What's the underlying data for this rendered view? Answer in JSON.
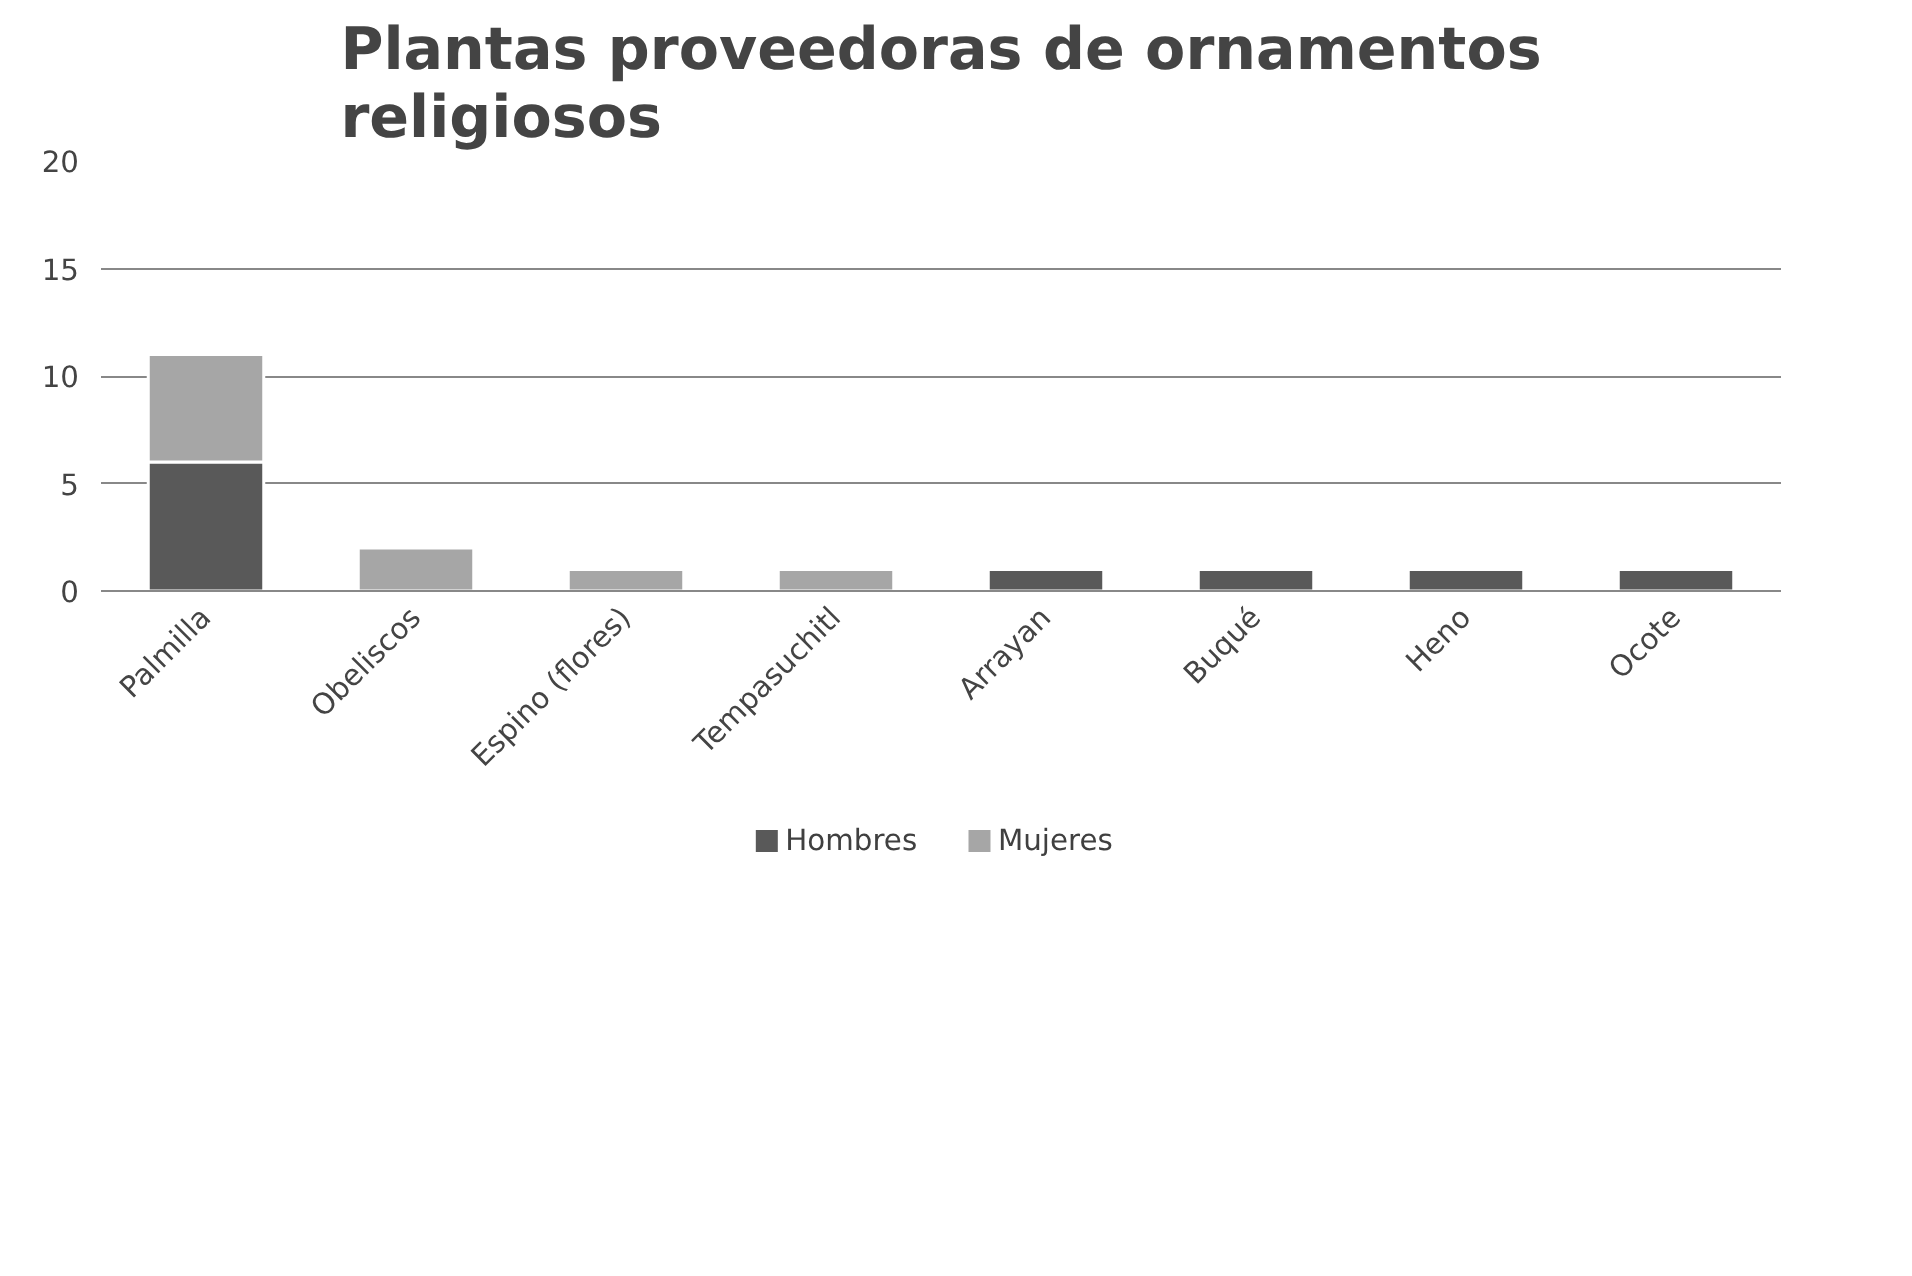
{
  "chart_data": {
    "type": "bar",
    "title": "Plantas proveedoras de ornamentos religiosos",
    "categories": [
      "Palmilla",
      "Obeliscos",
      "Espino (flores)",
      "Tempasuchitl",
      "Arrayan",
      "Buqué",
      "Heno",
      "Ocote"
    ],
    "stacked": true,
    "series": [
      {
        "name": "Hombres",
        "color": "#595959",
        "values": [
          6,
          0,
          0,
          0,
          1,
          1,
          1,
          1
        ]
      },
      {
        "name": "Mujeres",
        "color": "#a6a6a6",
        "values": [
          5,
          2,
          1,
          1,
          0,
          0,
          0,
          0
        ]
      }
    ],
    "ylim": [
      0,
      20
    ],
    "yticks": [
      0,
      5,
      10,
      15,
      20
    ],
    "grid": "y",
    "legend": "bottom"
  }
}
